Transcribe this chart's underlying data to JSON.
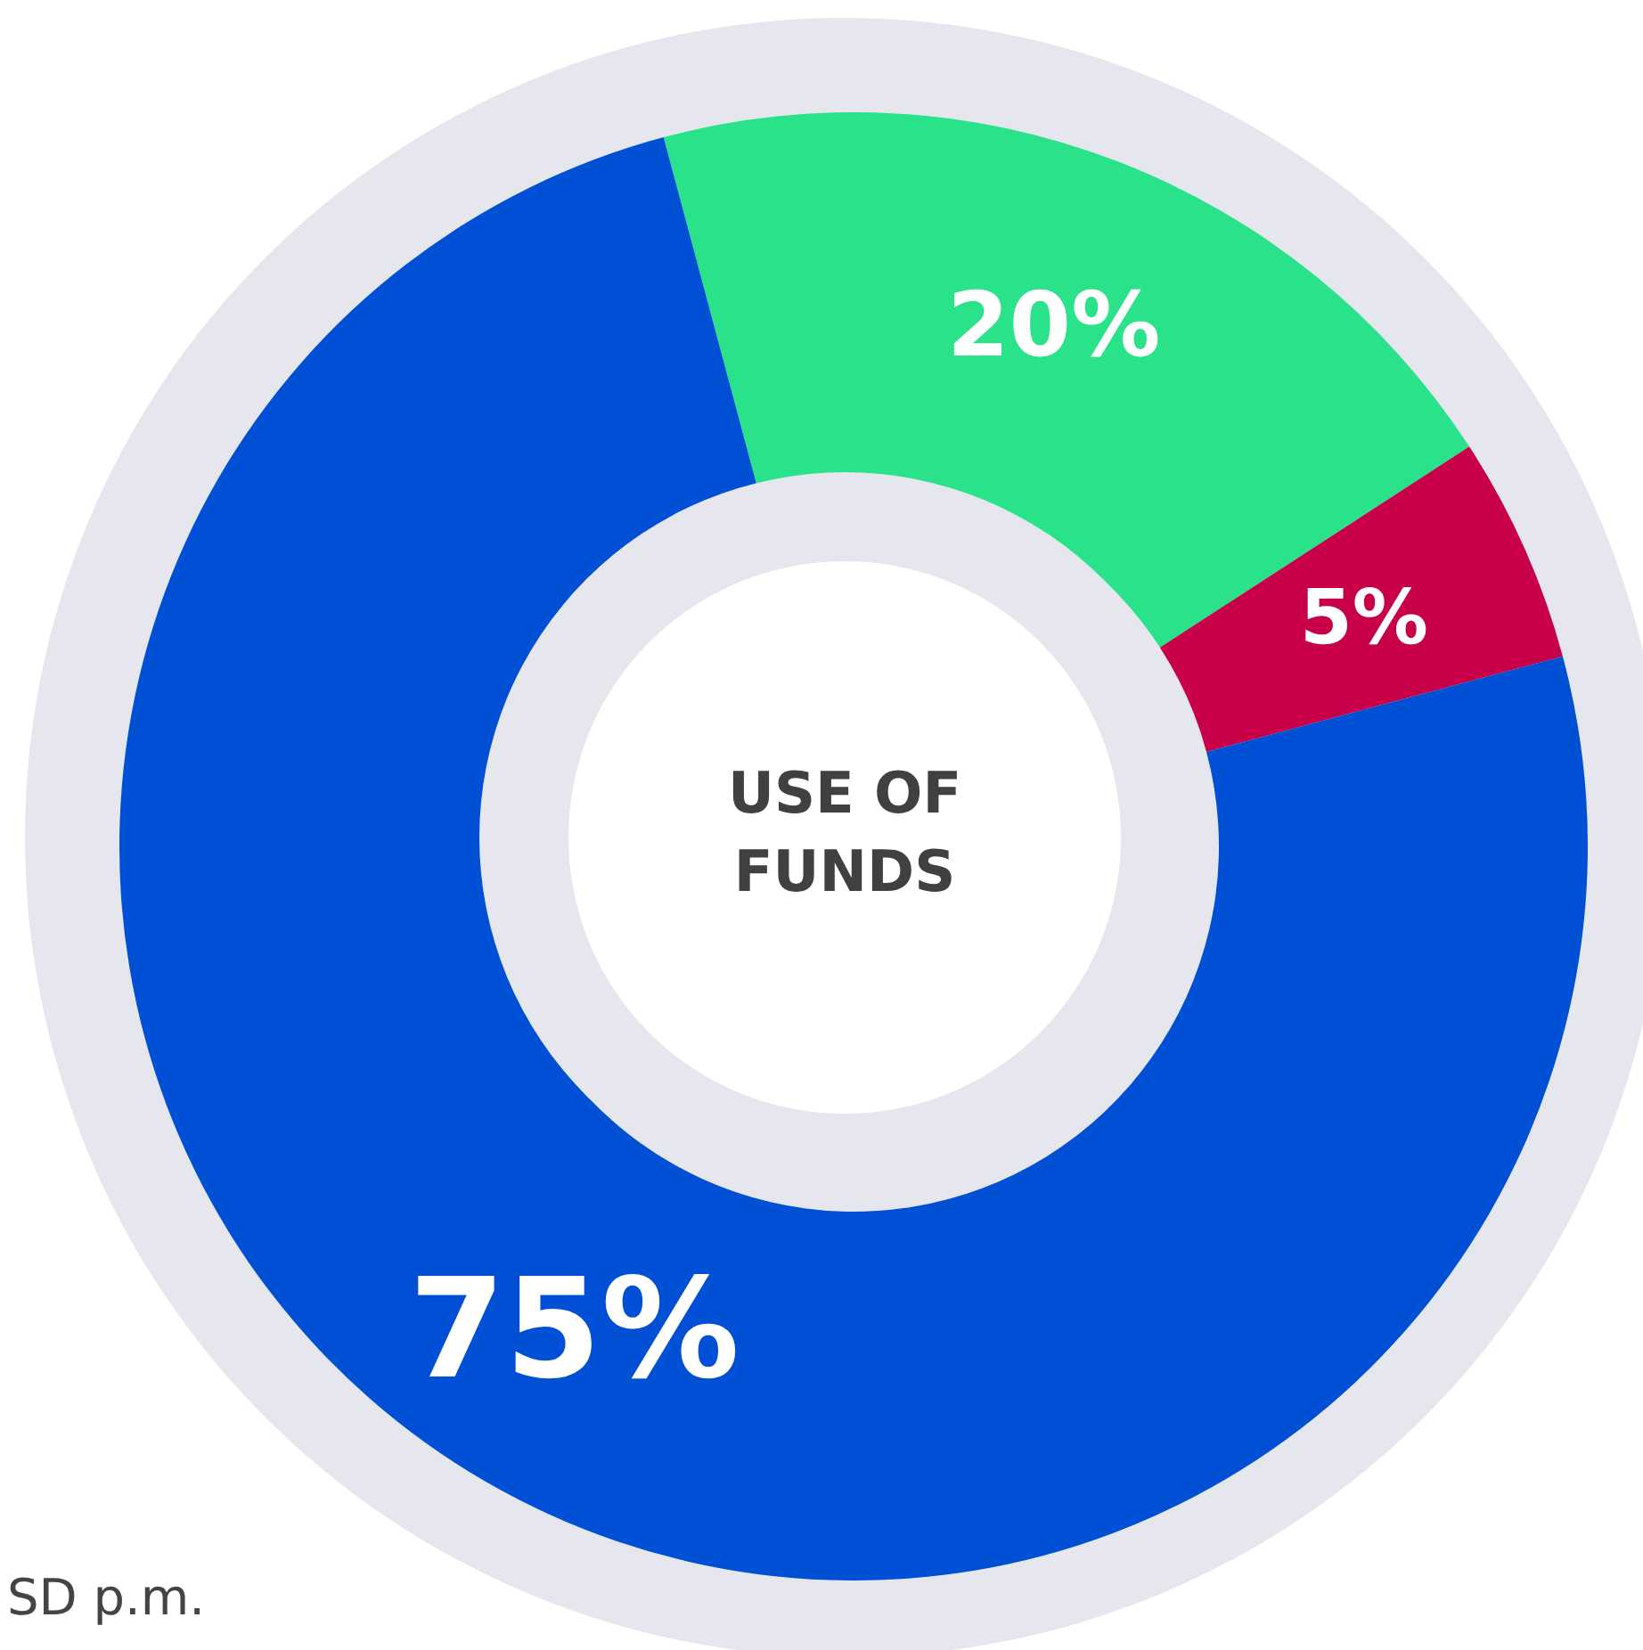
{
  "chart_data": {
    "type": "donut",
    "title": "USE OF FUNDS",
    "categories": [
      null,
      null,
      null
    ],
    "values": [
      20,
      5,
      75
    ],
    "colors": [
      "#2ae289",
      "#c8004a",
      "#0050d5"
    ],
    "value_labels": [
      "20%",
      "5%",
      "75%"
    ],
    "annotations": [
      "SD p.m."
    ]
  }
}
